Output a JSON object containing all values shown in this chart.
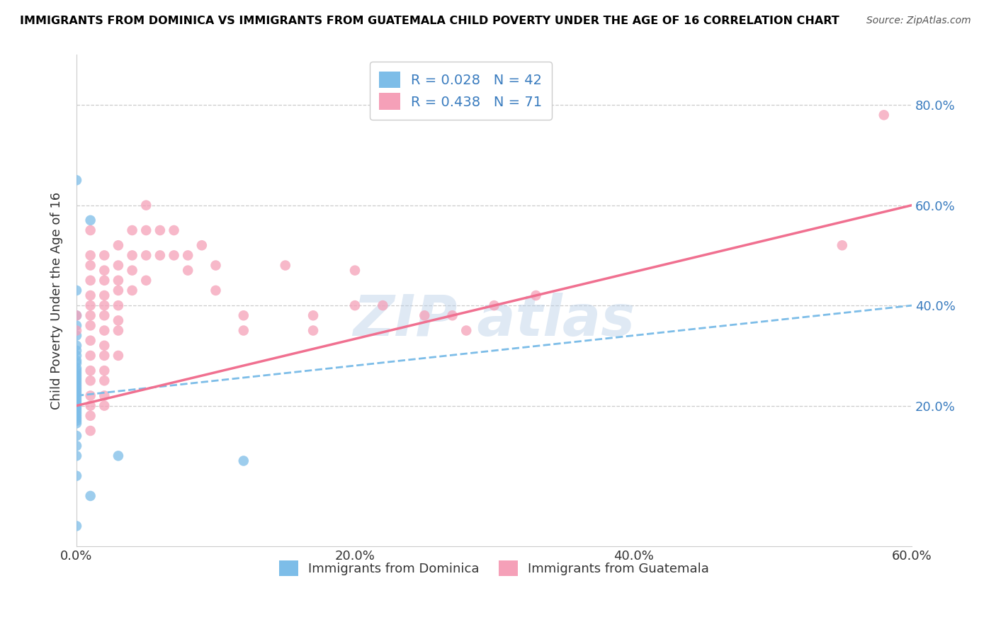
{
  "title": "IMMIGRANTS FROM DOMINICA VS IMMIGRANTS FROM GUATEMALA CHILD POVERTY UNDER THE AGE OF 16 CORRELATION CHART",
  "source": "Source: ZipAtlas.com",
  "ylabel": "Child Poverty Under the Age of 16",
  "xlim": [
    0.0,
    0.6
  ],
  "ylim": [
    -0.08,
    0.9
  ],
  "xtick_labels": [
    "0.0%",
    "20.0%",
    "40.0%",
    "60.0%"
  ],
  "xtick_vals": [
    0.0,
    0.2,
    0.4,
    0.6
  ],
  "ytick_labels": [
    "20.0%",
    "40.0%",
    "60.0%",
    "80.0%"
  ],
  "ytick_vals": [
    0.2,
    0.4,
    0.6,
    0.8
  ],
  "dominica_color": "#7dbde8",
  "guatemala_color": "#f5a0b8",
  "dominica_line_color": "#7dbde8",
  "guatemala_line_color": "#f07090",
  "dominica_R": 0.028,
  "dominica_N": 42,
  "guatemala_R": 0.438,
  "guatemala_N": 71,
  "legend_label_1": "Immigrants from Dominica",
  "legend_label_2": "Immigrants from Guatemala",
  "watermark": "ZIPatlas",
  "dominica_scatter": [
    [
      0.0,
      0.65
    ],
    [
      0.01,
      0.57
    ],
    [
      0.0,
      0.43
    ],
    [
      0.0,
      0.38
    ],
    [
      0.0,
      0.36
    ],
    [
      0.0,
      0.34
    ],
    [
      0.0,
      0.32
    ],
    [
      0.0,
      0.31
    ],
    [
      0.0,
      0.3
    ],
    [
      0.0,
      0.29
    ],
    [
      0.0,
      0.285
    ],
    [
      0.0,
      0.275
    ],
    [
      0.0,
      0.27
    ],
    [
      0.0,
      0.265
    ],
    [
      0.0,
      0.26
    ],
    [
      0.0,
      0.255
    ],
    [
      0.0,
      0.25
    ],
    [
      0.0,
      0.245
    ],
    [
      0.0,
      0.24
    ],
    [
      0.0,
      0.235
    ],
    [
      0.0,
      0.23
    ],
    [
      0.0,
      0.225
    ],
    [
      0.0,
      0.22
    ],
    [
      0.0,
      0.215
    ],
    [
      0.0,
      0.21
    ],
    [
      0.0,
      0.205
    ],
    [
      0.0,
      0.2
    ],
    [
      0.0,
      0.195
    ],
    [
      0.0,
      0.19
    ],
    [
      0.0,
      0.185
    ],
    [
      0.0,
      0.18
    ],
    [
      0.0,
      0.175
    ],
    [
      0.0,
      0.17
    ],
    [
      0.0,
      0.165
    ],
    [
      0.0,
      0.14
    ],
    [
      0.0,
      0.12
    ],
    [
      0.0,
      0.1
    ],
    [
      0.0,
      0.06
    ],
    [
      0.03,
      0.1
    ],
    [
      0.12,
      0.09
    ],
    [
      0.01,
      0.02
    ],
    [
      0.0,
      -0.04
    ]
  ],
  "guatemala_scatter": [
    [
      0.0,
      0.38
    ],
    [
      0.0,
      0.35
    ],
    [
      0.01,
      0.55
    ],
    [
      0.01,
      0.5
    ],
    [
      0.01,
      0.48
    ],
    [
      0.01,
      0.45
    ],
    [
      0.01,
      0.42
    ],
    [
      0.01,
      0.4
    ],
    [
      0.01,
      0.38
    ],
    [
      0.01,
      0.36
    ],
    [
      0.01,
      0.33
    ],
    [
      0.01,
      0.3
    ],
    [
      0.01,
      0.27
    ],
    [
      0.01,
      0.25
    ],
    [
      0.01,
      0.22
    ],
    [
      0.01,
      0.2
    ],
    [
      0.01,
      0.18
    ],
    [
      0.01,
      0.15
    ],
    [
      0.02,
      0.5
    ],
    [
      0.02,
      0.47
    ],
    [
      0.02,
      0.45
    ],
    [
      0.02,
      0.42
    ],
    [
      0.02,
      0.4
    ],
    [
      0.02,
      0.38
    ],
    [
      0.02,
      0.35
    ],
    [
      0.02,
      0.32
    ],
    [
      0.02,
      0.3
    ],
    [
      0.02,
      0.27
    ],
    [
      0.02,
      0.25
    ],
    [
      0.02,
      0.22
    ],
    [
      0.02,
      0.2
    ],
    [
      0.03,
      0.52
    ],
    [
      0.03,
      0.48
    ],
    [
      0.03,
      0.45
    ],
    [
      0.03,
      0.43
    ],
    [
      0.03,
      0.4
    ],
    [
      0.03,
      0.37
    ],
    [
      0.03,
      0.35
    ],
    [
      0.03,
      0.3
    ],
    [
      0.04,
      0.55
    ],
    [
      0.04,
      0.5
    ],
    [
      0.04,
      0.47
    ],
    [
      0.04,
      0.43
    ],
    [
      0.05,
      0.6
    ],
    [
      0.05,
      0.55
    ],
    [
      0.05,
      0.5
    ],
    [
      0.05,
      0.45
    ],
    [
      0.06,
      0.55
    ],
    [
      0.06,
      0.5
    ],
    [
      0.07,
      0.55
    ],
    [
      0.07,
      0.5
    ],
    [
      0.08,
      0.5
    ],
    [
      0.08,
      0.47
    ],
    [
      0.09,
      0.52
    ],
    [
      0.1,
      0.48
    ],
    [
      0.1,
      0.43
    ],
    [
      0.12,
      0.38
    ],
    [
      0.12,
      0.35
    ],
    [
      0.15,
      0.48
    ],
    [
      0.17,
      0.38
    ],
    [
      0.17,
      0.35
    ],
    [
      0.2,
      0.47
    ],
    [
      0.2,
      0.4
    ],
    [
      0.22,
      0.4
    ],
    [
      0.25,
      0.38
    ],
    [
      0.27,
      0.38
    ],
    [
      0.28,
      0.35
    ],
    [
      0.3,
      0.4
    ],
    [
      0.33,
      0.42
    ],
    [
      0.55,
      0.52
    ],
    [
      0.58,
      0.78
    ]
  ]
}
